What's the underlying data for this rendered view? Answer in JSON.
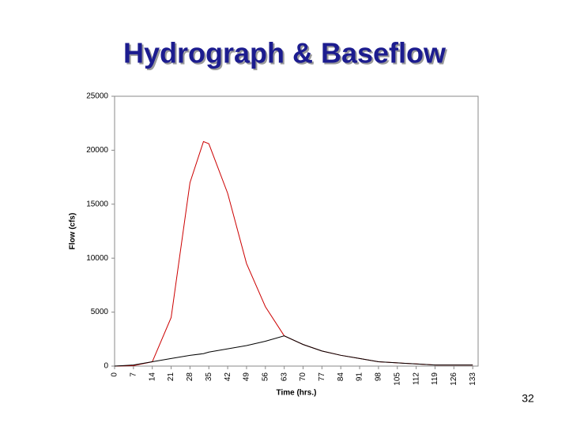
{
  "chart_data": {
    "type": "line",
    "title": "Hydrograph & Baseflow",
    "x_label": "Time (hrs.)",
    "y_label": "Flow (cfs)",
    "x": [
      0,
      7,
      14,
      21,
      28,
      33,
      35,
      42,
      49,
      56,
      63,
      70,
      77,
      84,
      91,
      98,
      105,
      112,
      119,
      126,
      133
    ],
    "series": [
      {
        "color": "#cc0000",
        "values": [
          0,
          50,
          400,
          4500,
          17000,
          20800,
          20600,
          16000,
          9500,
          5500,
          2800,
          2000,
          1400,
          1000,
          700,
          400,
          300,
          200,
          100,
          100,
          100
        ]
      },
      {
        "color": "#000000",
        "values": [
          0,
          100,
          400,
          700,
          1000,
          1150,
          1300,
          1600,
          1900,
          2300,
          2800,
          2000,
          1400,
          1000,
          700,
          400,
          300,
          200,
          100,
          100,
          100
        ]
      }
    ],
    "xlim": [
      0,
      135
    ],
    "xticks": [
      0,
      7,
      14,
      21,
      28,
      35,
      42,
      49,
      56,
      63,
      70,
      77,
      84,
      91,
      98,
      105,
      112,
      119,
      126,
      133
    ],
    "ylim": [
      0,
      25000
    ],
    "yticks": [
      0,
      5000,
      10000,
      15000,
      20000,
      25000
    ],
    "grid": false
  },
  "slide": {
    "number": "32"
  }
}
